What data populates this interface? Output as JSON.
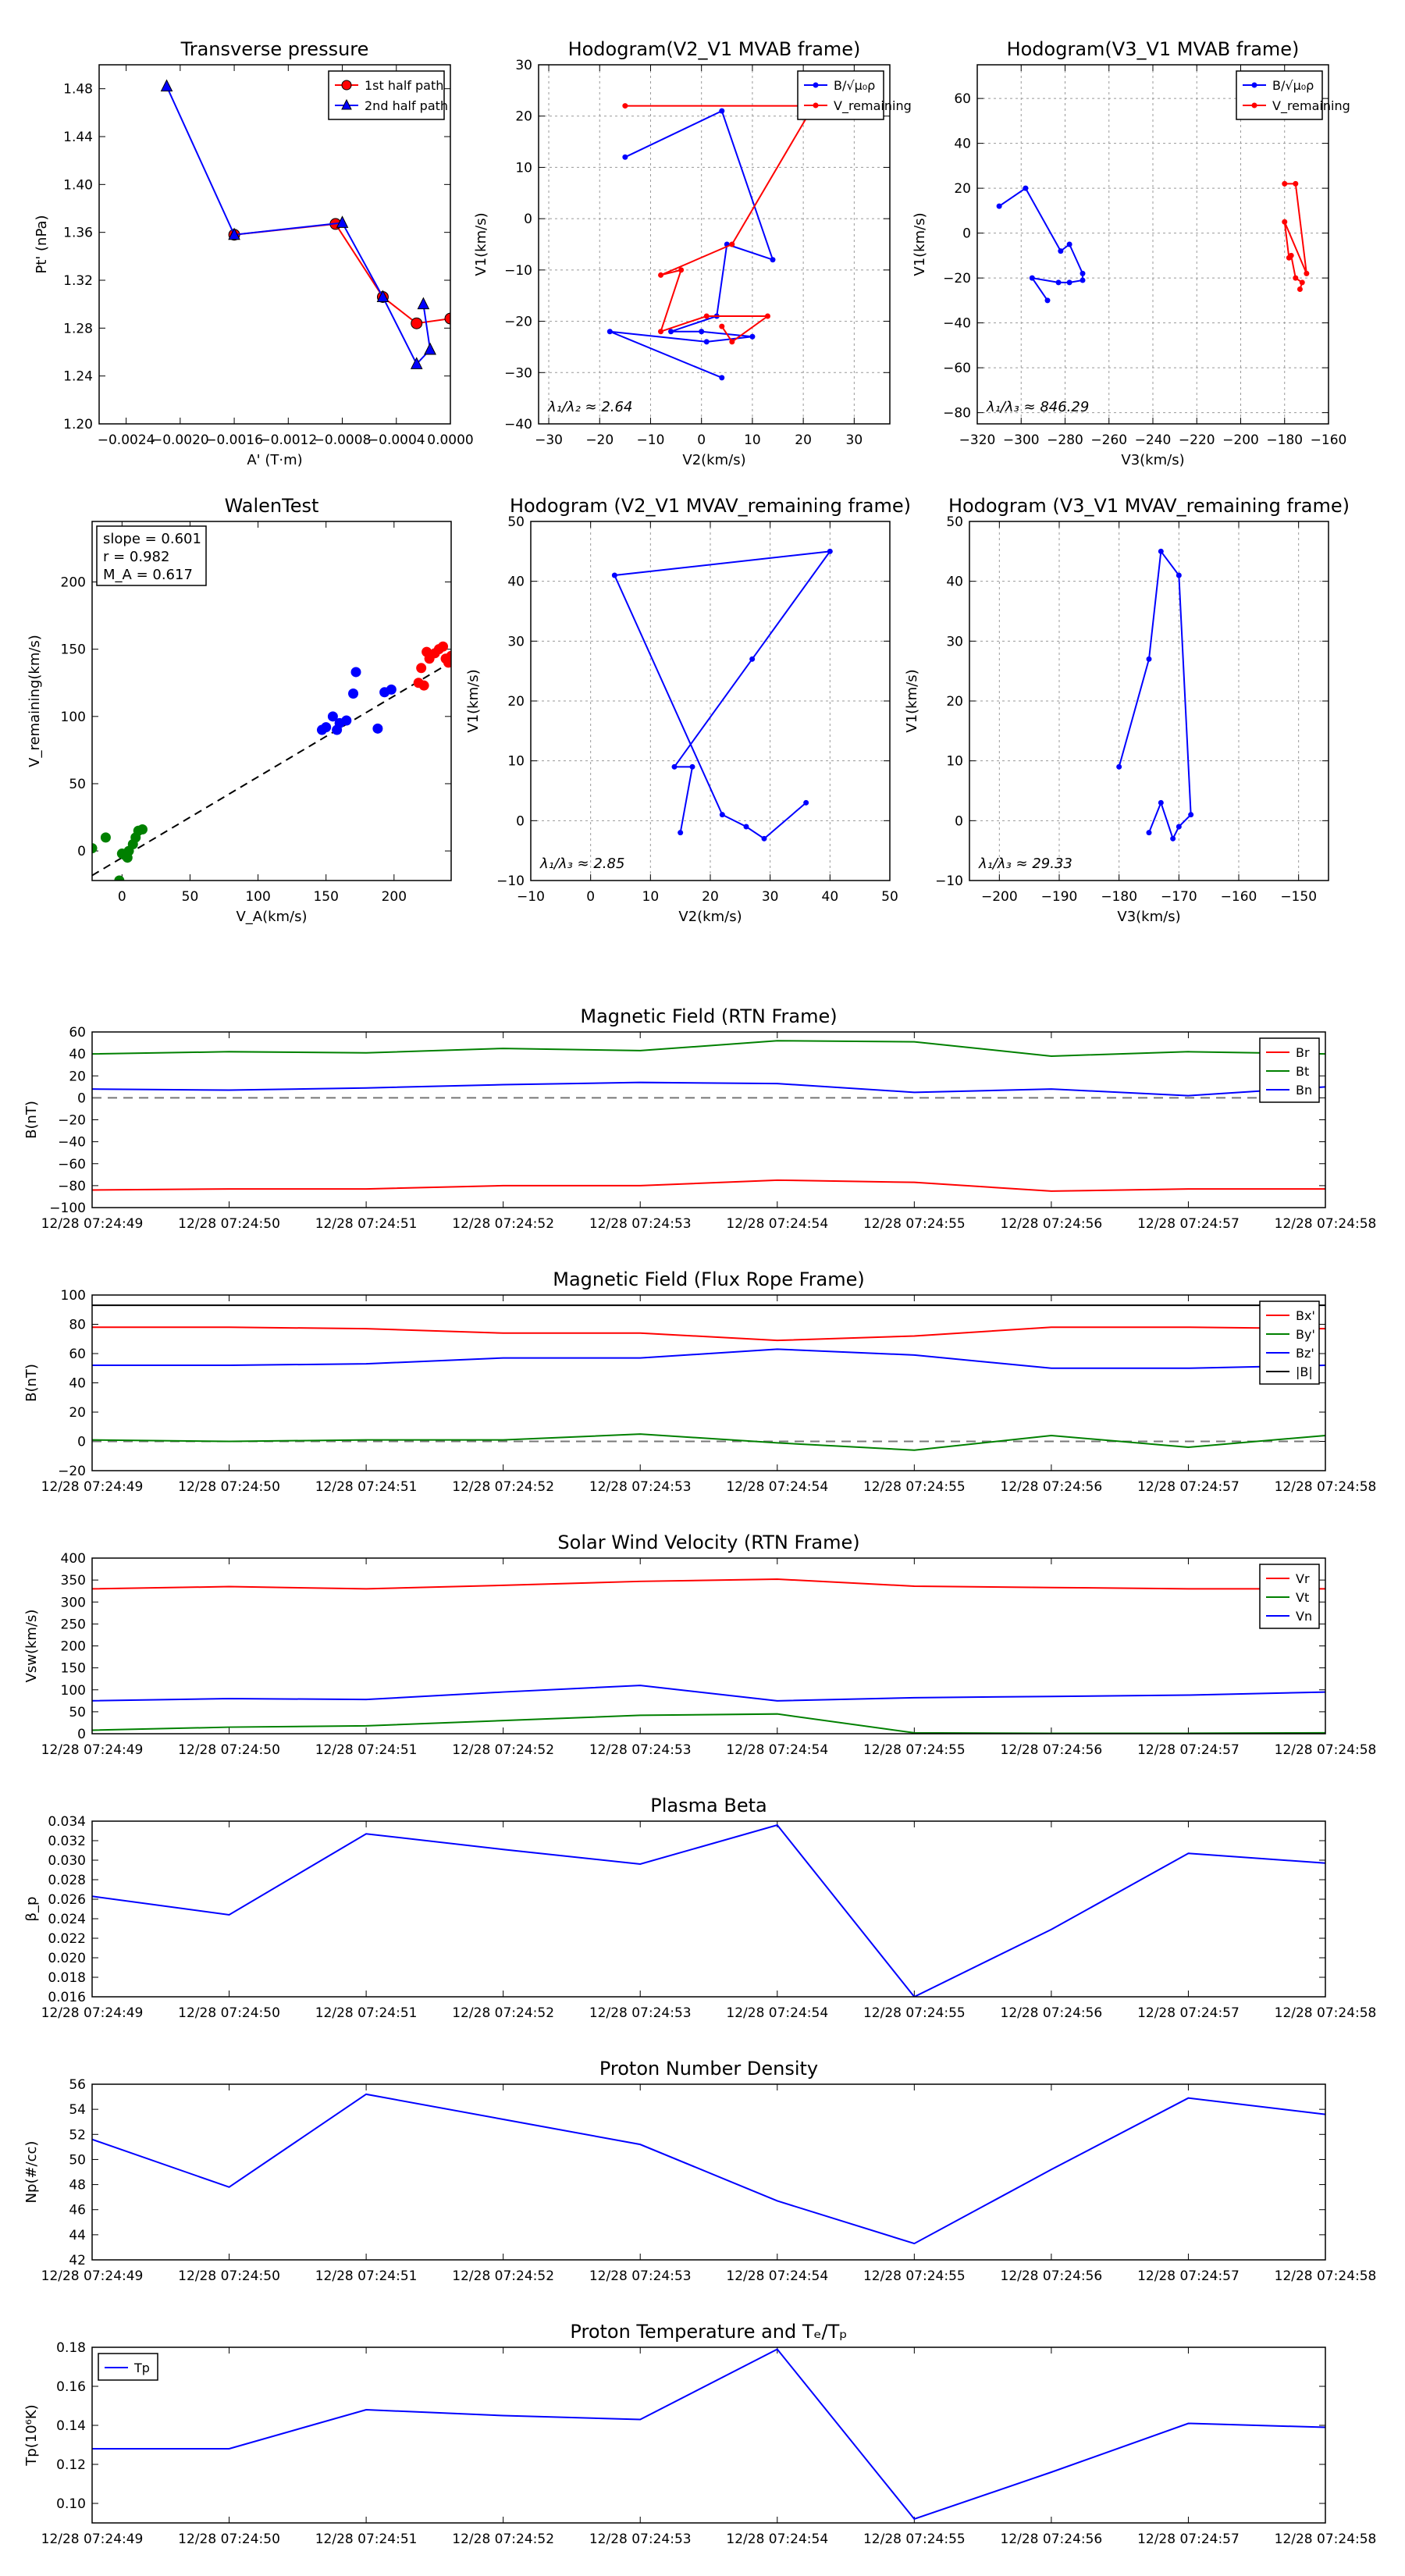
{
  "colors": {
    "red": "#ff0000",
    "green": "#008000",
    "blue": "#0000ff",
    "black": "#000000",
    "grid": "#999999"
  },
  "chart_data": [
    {
      "id": "transverse-pressure",
      "type": "line",
      "title": "Transverse pressure",
      "xlabel": "A' (T·m)",
      "ylabel": "Pt' (nPa)",
      "xlim": [
        -0.0026,
        0.0
      ],
      "ylim": [
        1.2,
        1.5
      ],
      "xticks": [
        -0.0024,
        -0.002,
        -0.0016,
        -0.0012,
        -0.0008,
        -0.0004,
        0.0
      ],
      "xtick_labels": [
        "−0.0024",
        "−0.0020",
        "−0.0016",
        "−0.0012",
        "−0.0008",
        "−0.0004",
        "0.0000"
      ],
      "yticks": [
        1.2,
        1.24,
        1.28,
        1.32,
        1.36,
        1.4,
        1.44,
        1.48
      ],
      "ytick_labels": [
        "1.20",
        "1.24",
        "1.28",
        "1.32",
        "1.36",
        "1.40",
        "1.44",
        "1.48"
      ],
      "grid": false,
      "legend": "top-right",
      "series": [
        {
          "name": "1st half path",
          "color": "red",
          "marker": "circle",
          "x": [
            -0.0016,
            -0.00085,
            -0.0005,
            -0.00025,
            0.0
          ],
          "y": [
            1.358,
            1.367,
            1.306,
            1.284,
            1.288
          ]
        },
        {
          "name": "2nd half path",
          "color": "blue",
          "marker": "triangle",
          "x": [
            -0.0021,
            -0.0016,
            -0.0008,
            -0.0005,
            -0.00025,
            -0.00015,
            -0.0002,
            -0.00015
          ],
          "y": [
            1.482,
            1.358,
            1.368,
            1.306,
            1.25,
            1.262,
            1.3,
            1.262
          ]
        }
      ]
    },
    {
      "id": "hodogram-v2-v1-mvab",
      "type": "line",
      "title": "Hodogram(V2_V1 MVAB frame)",
      "xlabel": "V2(km/s)",
      "ylabel": "V1(km/s)",
      "xlim": [
        -32,
        37
      ],
      "ylim": [
        -40,
        30
      ],
      "xticks": [
        -30,
        -20,
        -10,
        0,
        10,
        20,
        30
      ],
      "xtick_labels": [
        "−30",
        "−20",
        "−10",
        "0",
        "10",
        "20",
        "30"
      ],
      "yticks": [
        -40,
        -30,
        -20,
        -10,
        0,
        10,
        20,
        30
      ],
      "ytick_labels": [
        "−40",
        "−30",
        "−20",
        "−10",
        "0",
        "10",
        "20",
        "30"
      ],
      "grid": true,
      "legend": "top-right",
      "legend_labels": [
        "B/√μ₀ρ",
        "V_remaining"
      ],
      "annotation": "λ₁/λ₂ ≈ 2.64",
      "series": [
        {
          "name": "B",
          "color": "blue",
          "x": [
            -15,
            4,
            14,
            5,
            3,
            -6,
            0,
            10,
            1,
            -18,
            4
          ],
          "y": [
            12,
            21,
            -8,
            -5,
            -19,
            -22,
            -22,
            -23,
            -24,
            -22,
            -31
          ]
        },
        {
          "name": "V",
          "color": "red",
          "x": [
            -15,
            22,
            6,
            -8,
            -4,
            -8,
            1,
            13,
            6,
            4
          ],
          "y": [
            22,
            22,
            -5,
            -11,
            -10,
            -22,
            -19,
            -19,
            -24,
            -21
          ]
        }
      ]
    },
    {
      "id": "hodogram-v3-v1-mvab",
      "type": "line",
      "title": "Hodogram(V3_V1 MVAB frame)",
      "xlabel": "V3(km/s)",
      "ylabel": "V1(km/s)",
      "xlim": [
        -320,
        -160
      ],
      "ylim": [
        -85,
        75
      ],
      "xticks": [
        -320,
        -300,
        -280,
        -260,
        -240,
        -220,
        -200,
        -180,
        -160
      ],
      "xtick_labels": [
        "−320",
        "−300",
        "−280",
        "−260",
        "−240",
        "−220",
        "−200",
        "−180",
        "−160"
      ],
      "yticks": [
        -80,
        -60,
        -40,
        -20,
        0,
        20,
        40,
        60
      ],
      "ytick_labels": [
        "−80",
        "−60",
        "−40",
        "−20",
        "0",
        "20",
        "40",
        "60"
      ],
      "grid": true,
      "legend": "top-right",
      "legend_labels": [
        "B/√μ₀ρ",
        "V_remaining"
      ],
      "annotation": "λ₁/λ₃ ≈ 846.29",
      "series": [
        {
          "name": "B",
          "color": "blue",
          "x": [
            -310,
            -298,
            -282,
            -278,
            -272,
            -272,
            -278,
            -283,
            -295,
            -288
          ],
          "y": [
            12,
            20,
            -8,
            -5,
            -18,
            -21,
            -22,
            -22,
            -20,
            -30
          ]
        },
        {
          "name": "V",
          "color": "red",
          "x": [
            -180,
            -175,
            -170,
            -180,
            -178,
            -177,
            -175,
            -172,
            -173
          ],
          "y": [
            22,
            22,
            -18,
            5,
            -11,
            -10,
            -20,
            -22,
            -25
          ]
        }
      ]
    },
    {
      "id": "walen-test",
      "type": "scatter",
      "title": "WalenTest",
      "xlabel": "V_A(km/s)",
      "ylabel": "V_remaining(km/s)",
      "xlim": [
        -22,
        242
      ],
      "ylim": [
        -22,
        245
      ],
      "xticks": [
        0,
        50,
        100,
        150,
        200
      ],
      "xtick_labels": [
        "0",
        "50",
        "100",
        "150",
        "200"
      ],
      "yticks": [
        0,
        50,
        100,
        150,
        200
      ],
      "ytick_labels": [
        "0",
        "50",
        "100",
        "150",
        "200"
      ],
      "grid": false,
      "stats": {
        "slope": "slope = 0.601",
        "r": "r = 0.982",
        "ma": "M_A = 0.617"
      },
      "fit": {
        "slope": 0.601,
        "intercept": -5
      },
      "series": [
        {
          "name": "green",
          "color": "green",
          "x": [
            -22,
            -12,
            0,
            2,
            5,
            8,
            10,
            12,
            15,
            4,
            -2
          ],
          "y": [
            2,
            10,
            -2,
            -3,
            0,
            5,
            10,
            15,
            16,
            -5,
            -22
          ]
        },
        {
          "name": "blue",
          "color": "blue",
          "x": [
            147,
            155,
            158,
            165,
            170,
            172,
            188,
            193,
            198,
            160,
            150
          ],
          "y": [
            90,
            100,
            90,
            97,
            117,
            133,
            91,
            118,
            120,
            95,
            92
          ]
        },
        {
          "name": "red",
          "color": "red",
          "x": [
            218,
            220,
            222,
            224,
            226,
            230,
            233,
            236,
            238,
            240,
            242
          ],
          "y": [
            125,
            136,
            123,
            148,
            143,
            147,
            150,
            152,
            143,
            140,
            145
          ]
        }
      ]
    },
    {
      "id": "hodogram-v2-v1-mvav",
      "type": "line",
      "title": "Hodogram (V2_V1 MVAV_remaining frame)",
      "xlabel": "V2(km/s)",
      "ylabel": "V1(km/s)",
      "xlim": [
        -10,
        50
      ],
      "ylim": [
        -10,
        50
      ],
      "xticks": [
        -10,
        0,
        10,
        20,
        30,
        40,
        50
      ],
      "xtick_labels": [
        "−10",
        "0",
        "10",
        "20",
        "30",
        "40",
        "50"
      ],
      "yticks": [
        -10,
        0,
        10,
        20,
        30,
        40,
        50
      ],
      "ytick_labels": [
        "−10",
        "0",
        "10",
        "20",
        "30",
        "40",
        "50"
      ],
      "grid": true,
      "annotation": "λ₁/λ₃ ≈ 2.85",
      "series": [
        {
          "name": "V",
          "color": "blue",
          "x": [
            15,
            17,
            14,
            27,
            40,
            4,
            22,
            26,
            29,
            36
          ],
          "y": [
            -2,
            9,
            9,
            27,
            45,
            41,
            1,
            -1,
            -3,
            3
          ]
        }
      ]
    },
    {
      "id": "hodogram-v3-v1-mvav",
      "type": "line",
      "title": "Hodogram (V3_V1 MVAV_remaining frame)",
      "xlabel": "V3(km/s)",
      "ylabel": "V1(km/s)",
      "xlim": [
        -205,
        -145
      ],
      "ylim": [
        -10,
        50
      ],
      "xticks": [
        -200,
        -190,
        -180,
        -170,
        -160,
        -150
      ],
      "xtick_labels": [
        "−200",
        "−190",
        "−180",
        "−170",
        "−160",
        "−150"
      ],
      "yticks": [
        -10,
        0,
        10,
        20,
        30,
        40,
        50
      ],
      "ytick_labels": [
        "−10",
        "0",
        "10",
        "20",
        "30",
        "40",
        "50"
      ],
      "grid": true,
      "annotation": "λ₁/λ₃ ≈ 29.33",
      "series": [
        {
          "name": "V",
          "color": "blue",
          "x": [
            -175,
            -173,
            -171,
            -170,
            -168,
            -170,
            -173,
            -175,
            -180
          ],
          "y": [
            -2,
            3,
            -3,
            -1,
            1,
            41,
            45,
            27,
            9
          ]
        }
      ]
    },
    {
      "id": "magnetic-field-rtn",
      "type": "line",
      "title": "Magnetic Field (RTN Frame)",
      "ylabel": "B(nT)",
      "ylim": [
        -100,
        60
      ],
      "yticks": [
        -100,
        -80,
        -60,
        -40,
        -20,
        0,
        20,
        40,
        60
      ],
      "ytick_labels": [
        "−100",
        "−80",
        "−60",
        "−40",
        "−20",
        "0",
        "20",
        "40",
        "60"
      ],
      "zero_line": true,
      "legend": "top-right",
      "series": [
        {
          "name": "Br",
          "color": "red",
          "values": [
            -84,
            -83,
            -83,
            -80,
            -80,
            -75,
            -77,
            -85,
            -83,
            -83
          ]
        },
        {
          "name": "Bt",
          "color": "green",
          "values": [
            40,
            42,
            41,
            45,
            43,
            52,
            51,
            38,
            42,
            40
          ]
        },
        {
          "name": "Bn",
          "color": "blue",
          "values": [
            8,
            7,
            9,
            12,
            14,
            13,
            5,
            8,
            2,
            10
          ]
        }
      ]
    },
    {
      "id": "magnetic-field-flux-rope",
      "type": "line",
      "title": "Magnetic Field (Flux Rope Frame)",
      "ylabel": "B(nT)",
      "ylim": [
        -20,
        100
      ],
      "yticks": [
        -20,
        0,
        20,
        40,
        60,
        80,
        100
      ],
      "ytick_labels": [
        "−20",
        "0",
        "20",
        "40",
        "60",
        "80",
        "100"
      ],
      "zero_line": true,
      "legend": "top-right",
      "series": [
        {
          "name": "Bx'",
          "color": "red",
          "values": [
            78,
            78,
            77,
            74,
            74,
            69,
            72,
            78,
            78,
            77
          ]
        },
        {
          "name": "By'",
          "color": "green",
          "values": [
            1,
            0,
            1,
            1,
            5,
            -1,
            -6,
            4,
            -4,
            4
          ]
        },
        {
          "name": "Bz'",
          "color": "blue",
          "values": [
            52,
            52,
            53,
            57,
            57,
            63,
            59,
            50,
            50,
            52
          ]
        },
        {
          "name": "|B|",
          "color": "black",
          "values": [
            93,
            93,
            93,
            93,
            93,
            93,
            93,
            93,
            93,
            93
          ]
        }
      ]
    },
    {
      "id": "solar-wind-velocity",
      "type": "line",
      "title": "Solar Wind Velocity (RTN Frame)",
      "ylabel": "Vsw(km/s)",
      "ylim": [
        0,
        400
      ],
      "yticks": [
        0,
        50,
        100,
        150,
        200,
        250,
        300,
        350,
        400
      ],
      "ytick_labels": [
        "0",
        "50",
        "100",
        "150",
        "200",
        "250",
        "300",
        "350",
        "400"
      ],
      "legend": "top-right",
      "series": [
        {
          "name": "Vr",
          "color": "red",
          "values": [
            330,
            335,
            330,
            338,
            347,
            352,
            336,
            333,
            330,
            330
          ]
        },
        {
          "name": "Vt",
          "color": "green",
          "values": [
            8,
            15,
            18,
            30,
            42,
            45,
            2,
            1,
            1,
            2
          ]
        },
        {
          "name": "Vn",
          "color": "blue",
          "values": [
            75,
            80,
            78,
            95,
            110,
            75,
            82,
            85,
            88,
            95
          ]
        }
      ]
    },
    {
      "id": "plasma-beta",
      "type": "line",
      "title": "Plasma Beta",
      "ylabel": "β_p",
      "ylim": [
        0.016,
        0.034
      ],
      "yticks": [
        0.016,
        0.018,
        0.02,
        0.022,
        0.024,
        0.026,
        0.028,
        0.03,
        0.032,
        0.034
      ],
      "ytick_labels": [
        "0.016",
        "0.018",
        "0.020",
        "0.022",
        "0.024",
        "0.026",
        "0.028",
        "0.030",
        "0.032",
        "0.034"
      ],
      "series": [
        {
          "name": "beta",
          "color": "blue",
          "values": [
            0.0263,
            0.0244,
            0.0327,
            0.0311,
            0.0296,
            0.0336,
            0.016,
            0.0229,
            0.0307,
            0.0297
          ]
        }
      ]
    },
    {
      "id": "proton-number-density",
      "type": "line",
      "title": "Proton Number Density",
      "ylabel": "Np(#/cc)",
      "ylim": [
        42,
        56
      ],
      "yticks": [
        42,
        44,
        46,
        48,
        50,
        52,
        54,
        56
      ],
      "ytick_labels": [
        "42",
        "44",
        "46",
        "48",
        "50",
        "52",
        "54",
        "56"
      ],
      "series": [
        {
          "name": "Np",
          "color": "blue",
          "values": [
            51.6,
            47.8,
            55.2,
            53.2,
            51.2,
            46.7,
            43.3,
            49.2,
            54.9,
            53.6
          ]
        }
      ]
    },
    {
      "id": "proton-temperature",
      "type": "line",
      "title": "Proton Temperature and Tₑ/Tₚ",
      "ylabel": "Tp(10⁶K)",
      "ylim": [
        0.09,
        0.18
      ],
      "yticks": [
        0.1,
        0.12,
        0.14,
        0.16,
        0.18
      ],
      "ytick_labels": [
        "0.10",
        "0.12",
        "0.14",
        "0.16",
        "0.18"
      ],
      "legend": "top-left",
      "series": [
        {
          "name": "Tp",
          "color": "blue",
          "values": [
            0.128,
            0.128,
            0.148,
            0.145,
            0.143,
            0.179,
            0.092,
            0.116,
            0.141,
            0.139
          ]
        }
      ]
    }
  ],
  "time_axis": {
    "labels": [
      "12/28 07:24:49",
      "12/28 07:24:50",
      "12/28 07:24:51",
      "12/28 07:24:52",
      "12/28 07:24:53",
      "12/28 07:24:54",
      "12/28 07:24:55",
      "12/28 07:24:56",
      "12/28 07:24:57",
      "12/28 07:24:58"
    ]
  }
}
